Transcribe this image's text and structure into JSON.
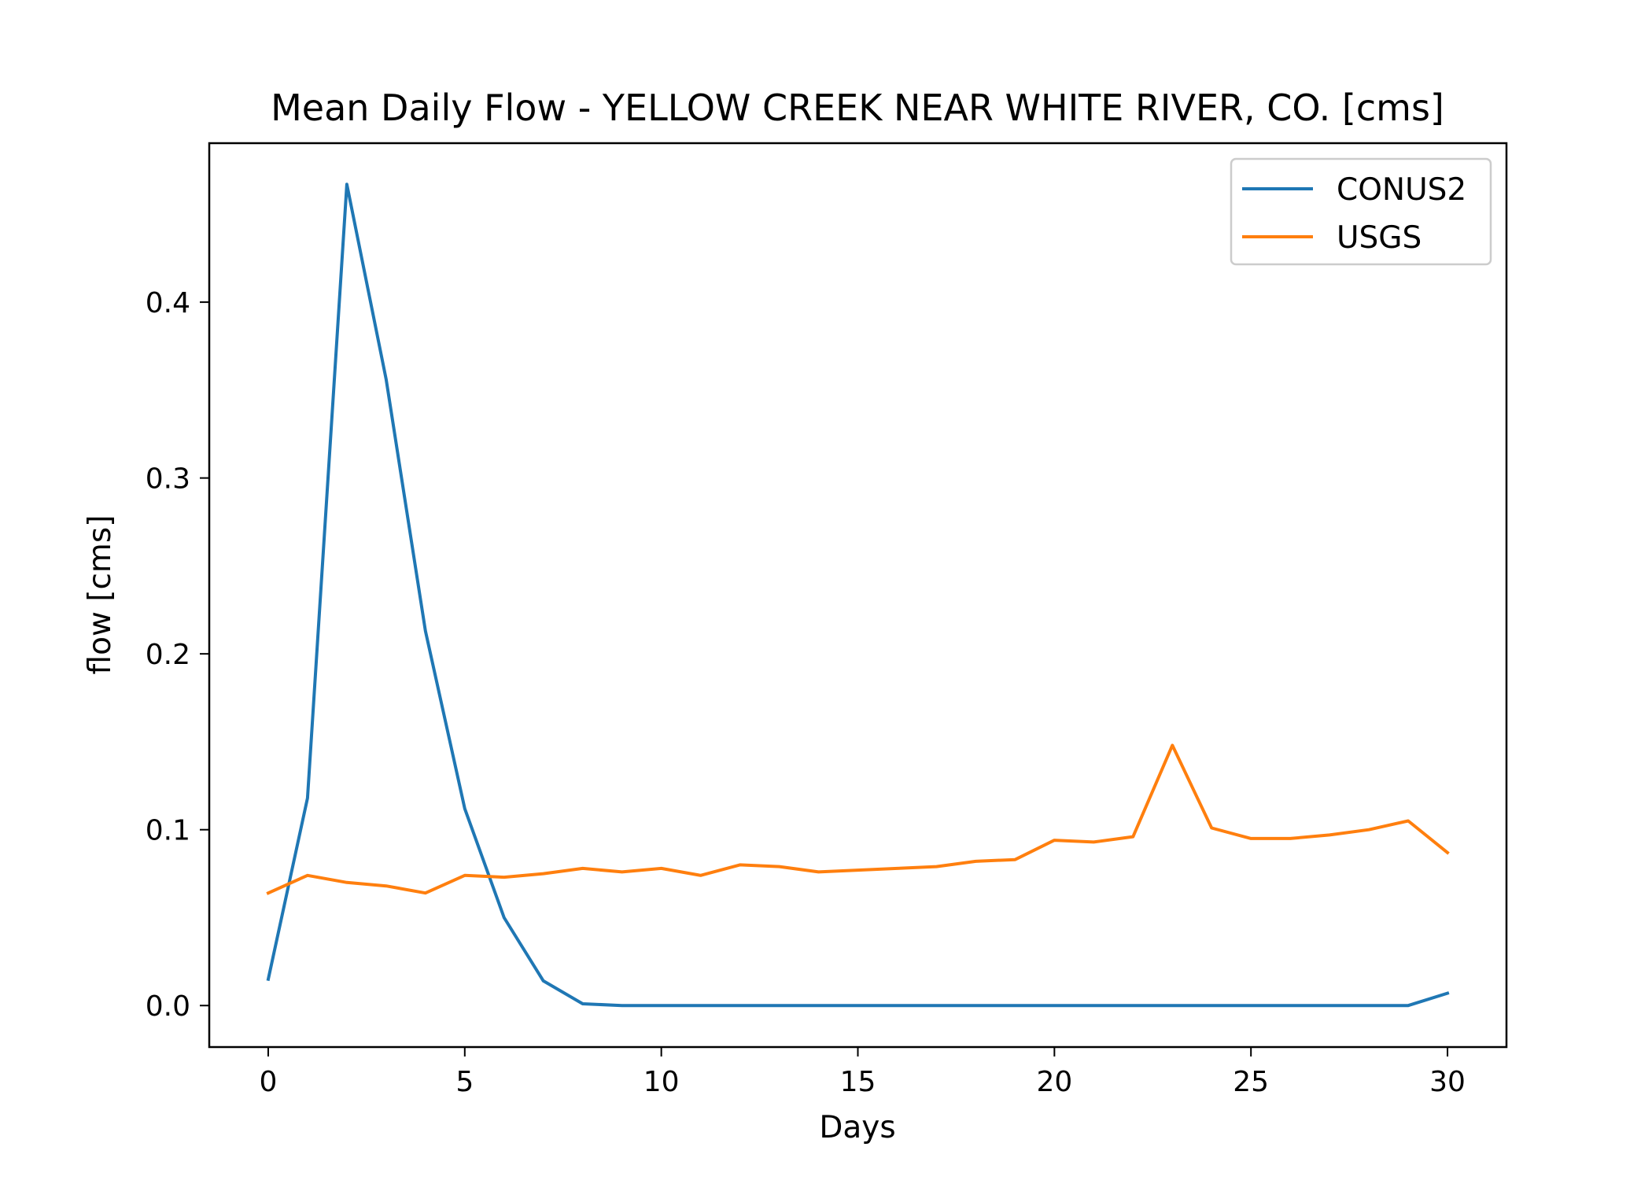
{
  "chart_data": {
    "type": "line",
    "title": "Mean Daily Flow - YELLOW CREEK NEAR WHITE RIVER, CO. [cms]",
    "xlabel": "Days",
    "ylabel": "flow [cms]",
    "xlim": [
      -1.5,
      31.5
    ],
    "ylim": [
      -0.0236,
      0.4904
    ],
    "xticks": [
      0,
      5,
      10,
      15,
      20,
      25,
      30
    ],
    "xtick_labels": [
      "0",
      "5",
      "10",
      "15",
      "20",
      "25",
      "30"
    ],
    "yticks": [
      0.0,
      0.1,
      0.2,
      0.3,
      0.4
    ],
    "ytick_labels": [
      "0.0",
      "0.1",
      "0.2",
      "0.3",
      "0.4"
    ],
    "grid": false,
    "legend": "top-right",
    "x": [
      0,
      1,
      2,
      3,
      4,
      5,
      6,
      7,
      8,
      9,
      10,
      11,
      12,
      13,
      14,
      15,
      16,
      17,
      18,
      19,
      20,
      21,
      22,
      23,
      24,
      25,
      26,
      27,
      28,
      29,
      30
    ],
    "series": [
      {
        "name": "CONUS2",
        "color": "#1f77b4",
        "values": [
          0.015,
          0.118,
          0.467,
          0.356,
          0.213,
          0.112,
          0.05,
          0.014,
          0.001,
          0.0,
          0.0,
          0.0,
          0.0,
          0.0,
          0.0,
          0.0,
          0.0,
          0.0,
          0.0,
          0.0,
          0.0,
          0.0,
          0.0,
          0.0,
          0.0,
          0.0,
          0.0,
          0.0,
          0.0,
          0.0,
          0.007
        ]
      },
      {
        "name": "USGS",
        "color": "#ff7f0e",
        "values": [
          0.064,
          0.074,
          0.07,
          0.068,
          0.064,
          0.074,
          0.073,
          0.075,
          0.078,
          0.076,
          0.078,
          0.074,
          0.08,
          0.079,
          0.076,
          0.077,
          0.078,
          0.079,
          0.082,
          0.083,
          0.094,
          0.093,
          0.096,
          0.148,
          0.101,
          0.095,
          0.095,
          0.097,
          0.1,
          0.105,
          0.087
        ]
      }
    ]
  }
}
